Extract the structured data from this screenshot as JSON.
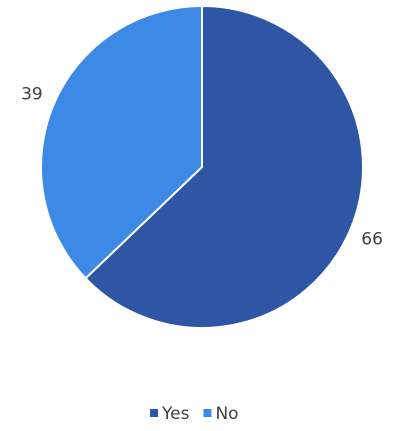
{
  "chart_data": {
    "type": "pie",
    "categories": [
      "Yes",
      "No"
    ],
    "values": [
      66,
      39
    ],
    "colors": [
      "#2f55a5",
      "#3d8ae6"
    ],
    "legend": "bottom"
  }
}
